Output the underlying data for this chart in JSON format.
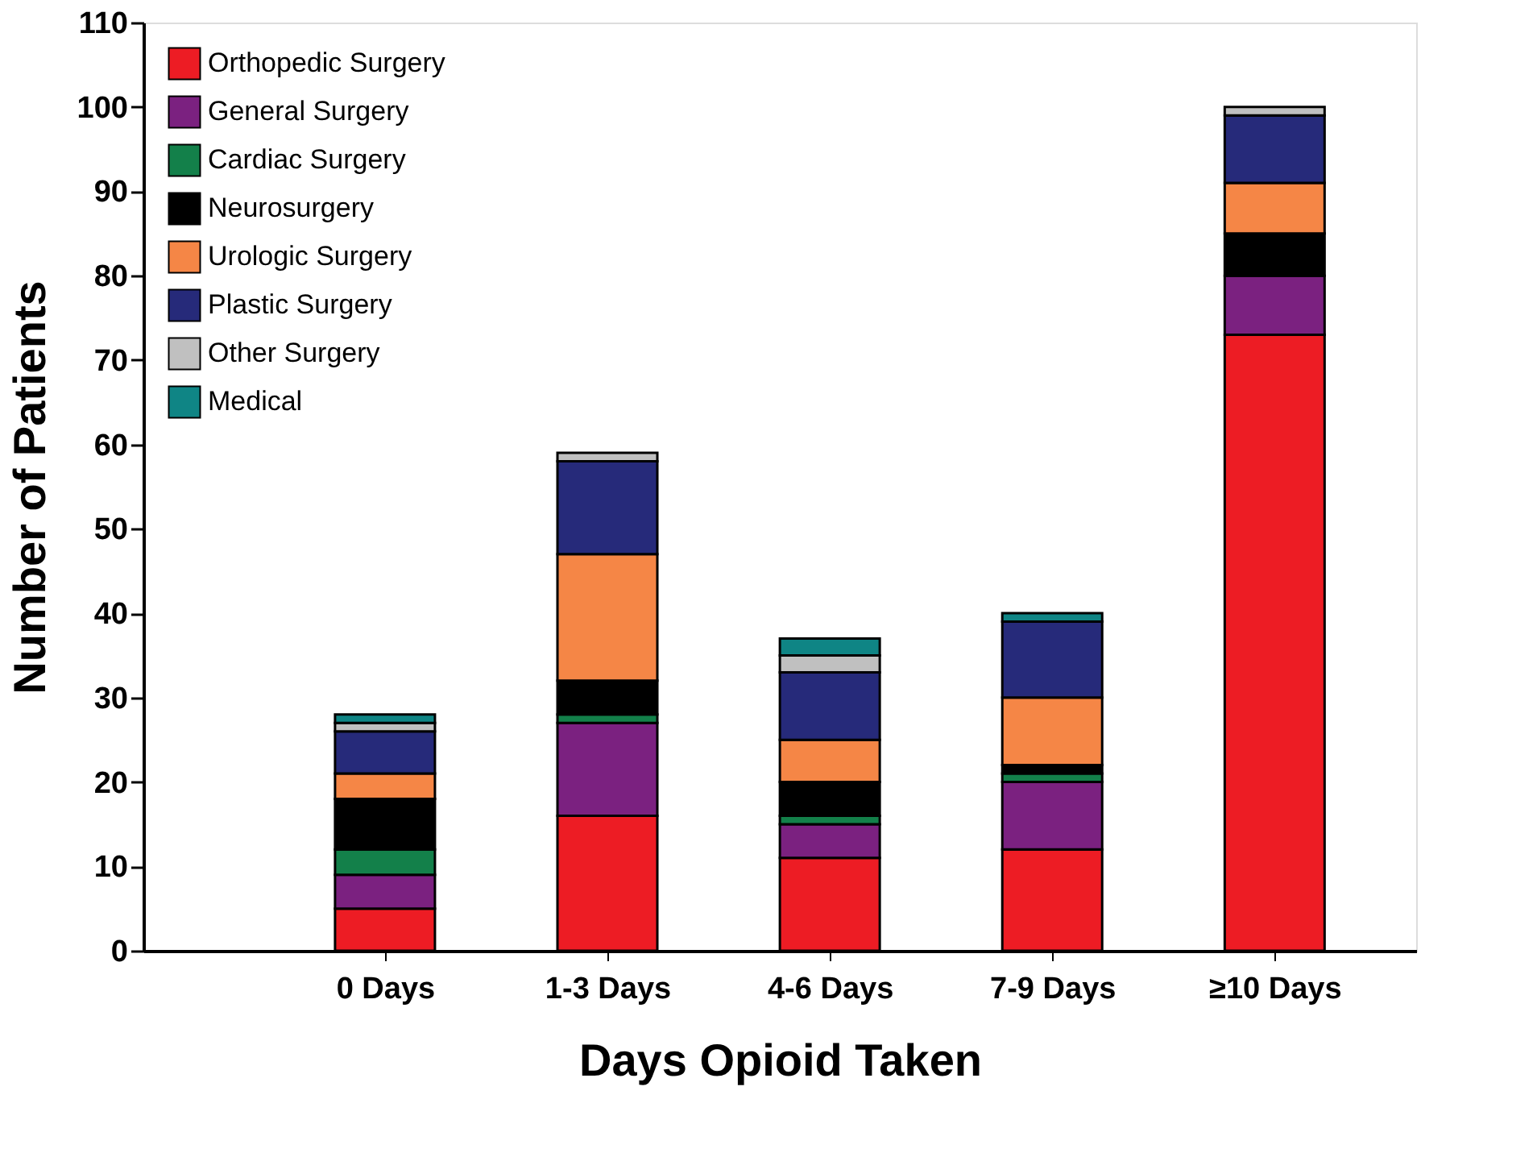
{
  "chart_data": {
    "type": "bar",
    "stacked": true,
    "xlabel": "Days Opioid Taken",
    "ylabel": "Number of Patients",
    "categories": [
      "0 Days",
      "1-3 Days",
      "4-6 Days",
      "7-9 Days",
      "≥10 Days"
    ],
    "series": [
      {
        "name": "Orthopedic Surgery",
        "color": "#ed1c24",
        "values": [
          5,
          16,
          11,
          12,
          73
        ]
      },
      {
        "name": "General Surgery",
        "color": "#7b2180",
        "values": [
          4,
          11,
          4,
          8,
          7
        ]
      },
      {
        "name": "Cardiac Surgery",
        "color": "#13804a",
        "values": [
          3,
          1,
          1,
          1,
          0
        ]
      },
      {
        "name": "Neurosurgery",
        "color": "#000000",
        "values": [
          6,
          4,
          4,
          1,
          5
        ]
      },
      {
        "name": "Urologic Surgery",
        "color": "#f58646",
        "values": [
          3,
          15,
          5,
          8,
          6
        ]
      },
      {
        "name": "Plastic Surgery",
        "color": "#262a7a",
        "values": [
          5,
          11,
          8,
          9,
          8
        ]
      },
      {
        "name": "Other Surgery",
        "color": "#c0c0c0",
        "values": [
          1,
          1,
          2,
          0,
          1
        ]
      },
      {
        "name": "Medical",
        "color": "#0f8585",
        "values": [
          1,
          0,
          2,
          1,
          0
        ]
      }
    ],
    "ylim": [
      0,
      110
    ],
    "yticks": [
      0,
      10,
      20,
      30,
      40,
      50,
      60,
      70,
      80,
      90,
      100,
      110
    ],
    "grid": false,
    "legend": "top left"
  }
}
